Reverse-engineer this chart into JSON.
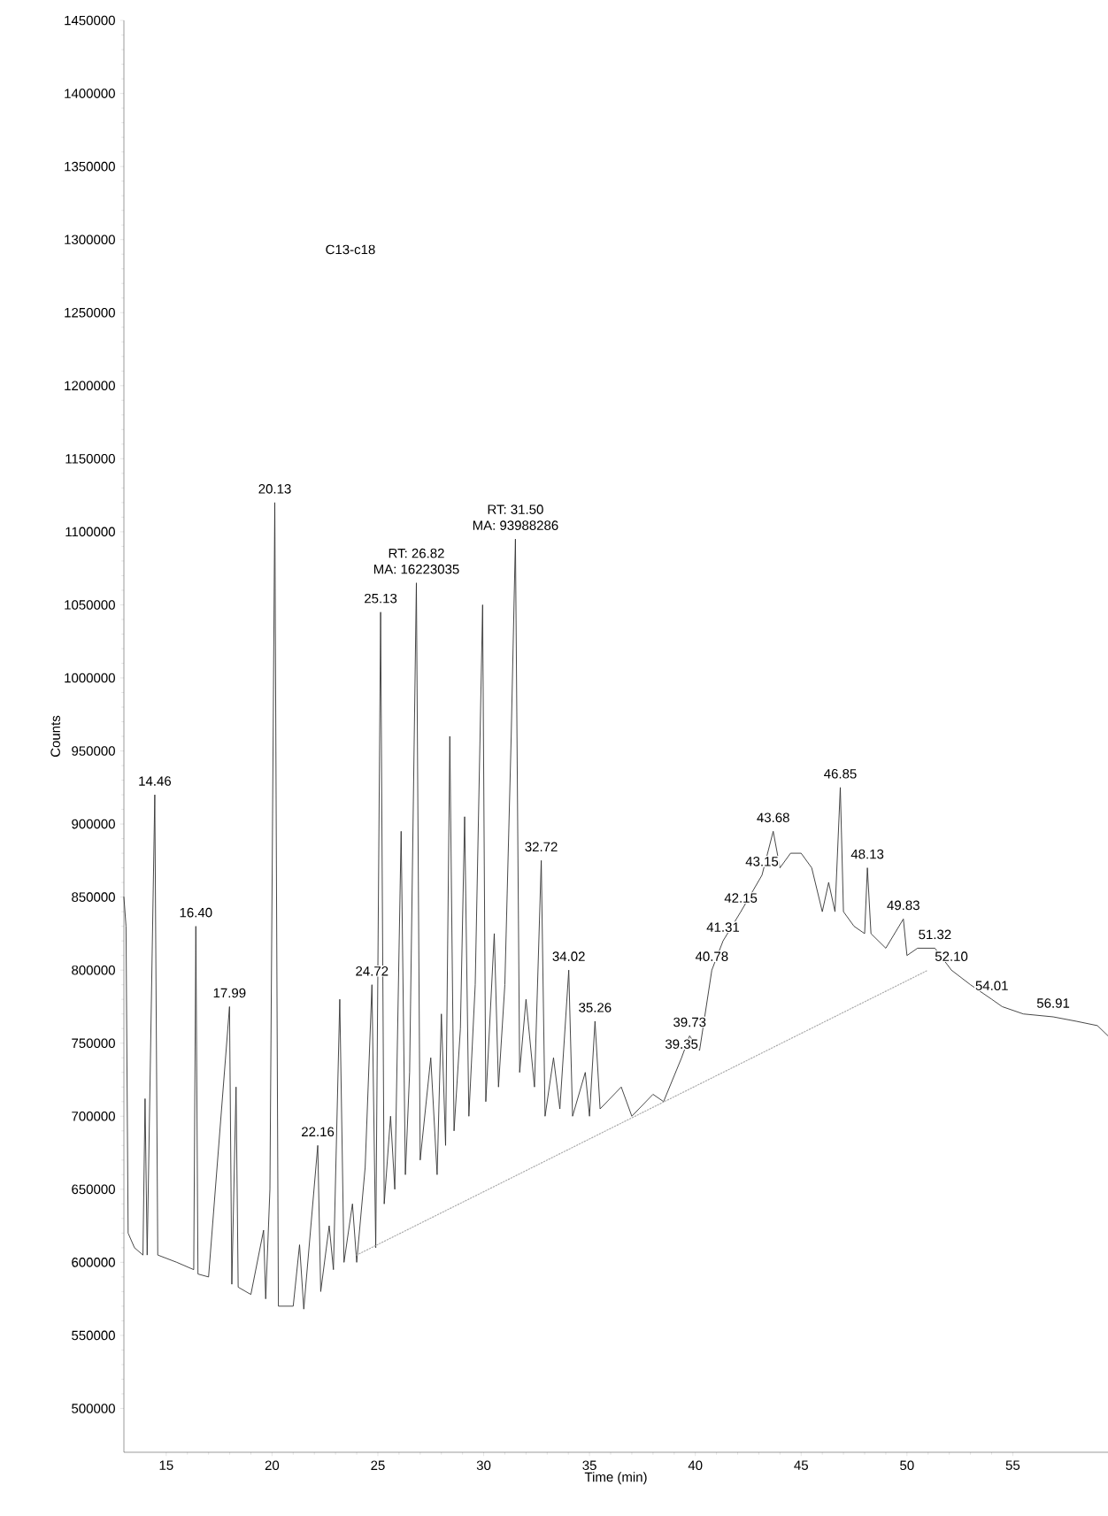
{
  "chart_data": {
    "type": "line",
    "xlabel": "Time (min)",
    "ylabel": "Counts",
    "xlim": [
      13,
      59.5
    ],
    "ylim": [
      470000,
      1450000
    ],
    "xticks": [
      15,
      20,
      25,
      30,
      35,
      40,
      45,
      50,
      55
    ],
    "yticks": [
      500000,
      550000,
      600000,
      650000,
      700000,
      750000,
      800000,
      850000,
      900000,
      950000,
      1000000,
      1050000,
      1100000,
      1150000,
      1200000,
      1250000,
      1300000,
      1350000,
      1400000,
      1450000
    ],
    "marker": "none",
    "line_style": "solid",
    "series": [
      {
        "color": "#333333",
        "x": [
          13.0,
          13.1,
          13.2,
          13.5,
          13.9,
          14.0,
          14.1,
          14.46,
          14.6,
          15.5,
          16.3,
          16.4,
          16.5,
          17.0,
          17.99,
          18.1,
          18.3,
          18.4,
          19.0,
          19.6,
          19.7,
          19.9,
          20.13,
          20.3,
          21.0,
          21.3,
          21.5,
          22.16,
          22.3,
          22.7,
          22.9,
          23.2,
          23.4,
          23.8,
          24.0,
          24.4,
          24.72,
          24.9,
          25.13,
          25.3,
          25.6,
          25.8,
          26.1,
          26.3,
          26.5,
          26.82,
          27.0,
          27.5,
          27.8,
          28.0,
          28.2,
          28.4,
          28.6,
          28.9,
          29.1,
          29.3,
          29.6,
          29.95,
          30.1,
          30.5,
          30.7,
          31.0,
          31.3,
          31.5,
          31.7,
          32.0,
          32.4,
          32.72,
          32.9,
          33.3,
          33.6,
          34.02,
          34.2,
          34.8,
          35.0,
          35.26,
          35.5,
          36.5,
          37.0,
          38.0,
          38.5,
          39.35,
          39.73,
          40.2,
          40.78,
          41.31,
          42.15,
          43.15,
          43.68,
          44.0,
          44.5,
          45.0,
          45.5,
          46.0,
          46.3,
          46.6,
          46.85,
          47.0,
          47.5,
          48.0,
          48.13,
          48.3,
          49.0,
          49.83,
          50.0,
          50.5,
          51.32,
          52.1,
          53.0,
          54.01,
          54.5,
          55.5,
          56.91,
          58.0,
          59.0,
          59.5
        ],
        "values": [
          850000,
          830000,
          620000,
          610000,
          605000,
          712000,
          605000,
          920000,
          605000,
          600000,
          595000,
          830000,
          592000,
          590000,
          775000,
          585000,
          720000,
          583000,
          578000,
          622000,
          575000,
          650000,
          1120000,
          570000,
          570000,
          612000,
          568000,
          680000,
          580000,
          625000,
          595000,
          780000,
          600000,
          640000,
          600000,
          665000,
          790000,
          610000,
          1045000,
          640000,
          700000,
          650000,
          895000,
          660000,
          730000,
          1065000,
          670000,
          740000,
          660000,
          770000,
          680000,
          960000,
          690000,
          760000,
          905000,
          700000,
          790000,
          1050000,
          710000,
          825000,
          720000,
          790000,
          960000,
          1095000,
          730000,
          780000,
          720000,
          875000,
          700000,
          740000,
          705000,
          800000,
          700000,
          730000,
          700000,
          765000,
          705000,
          720000,
          700000,
          715000,
          710000,
          740000,
          755000,
          745000,
          800000,
          820000,
          840000,
          865000,
          895000,
          870000,
          880000,
          880000,
          870000,
          840000,
          860000,
          840000,
          925000,
          840000,
          830000,
          825000,
          870000,
          825000,
          815000,
          835000,
          810000,
          815000,
          815000,
          800000,
          790000,
          780000,
          775000,
          770000,
          768000,
          765000,
          762000,
          755000
        ]
      },
      {
        "color": "#aaaaaa",
        "line_style": "dotted",
        "x": [
          24,
          51
        ],
        "values": [
          605000,
          800000
        ]
      }
    ],
    "annotations": [
      "C13-c18",
      {
        "text": "14.46",
        "x": 14.46,
        "y": 920000
      },
      {
        "text": "16.40",
        "x": 16.4,
        "y": 830000
      },
      {
        "text": "17.99",
        "x": 17.99,
        "y": 775000
      },
      {
        "text": "20.13",
        "x": 20.13,
        "y": 1120000
      },
      {
        "text": "22.16",
        "x": 22.16,
        "y": 680000
      },
      {
        "text": "24.72",
        "x": 24.72,
        "y": 790000
      },
      {
        "text": "25.13",
        "x": 25.13,
        "y": 1045000
      },
      {
        "text": "MA: 16223035",
        "x": 26.82,
        "y": 1065000
      },
      {
        "text": "RT: 26.82",
        "x": 26.82,
        "y": 1065000
      },
      {
        "text": "MA: 93988286",
        "x": 31.5,
        "y": 1095000
      },
      {
        "text": "RT: 31.50",
        "x": 31.5,
        "y": 1095000
      },
      {
        "text": "32.72",
        "x": 32.72,
        "y": 875000
      },
      {
        "text": "34.02",
        "x": 34.02,
        "y": 800000
      },
      {
        "text": "35.26",
        "x": 35.26,
        "y": 765000
      },
      {
        "text": "39.35",
        "x": 39.35,
        "y": 740000
      },
      {
        "text": "39.73",
        "x": 39.73,
        "y": 755000
      },
      {
        "text": "40.78",
        "x": 40.78,
        "y": 800000
      },
      {
        "text": "41.31",
        "x": 41.31,
        "y": 820000
      },
      {
        "text": "42.15",
        "x": 42.15,
        "y": 840000
      },
      {
        "text": "43.15",
        "x": 43.15,
        "y": 865000
      },
      {
        "text": "43.68",
        "x": 43.68,
        "y": 895000
      },
      {
        "text": "46.85",
        "x": 46.85,
        "y": 925000
      },
      {
        "text": "48.13",
        "x": 48.13,
        "y": 870000
      },
      {
        "text": "49.83",
        "x": 49.83,
        "y": 835000
      },
      {
        "text": "51.32",
        "x": 51.32,
        "y": 815000
      },
      {
        "text": "52.10",
        "x": 52.1,
        "y": 800000
      },
      {
        "text": "54.01",
        "x": 54.01,
        "y": 780000
      },
      {
        "text": "56.91",
        "x": 56.91,
        "y": 768000
      }
    ]
  }
}
